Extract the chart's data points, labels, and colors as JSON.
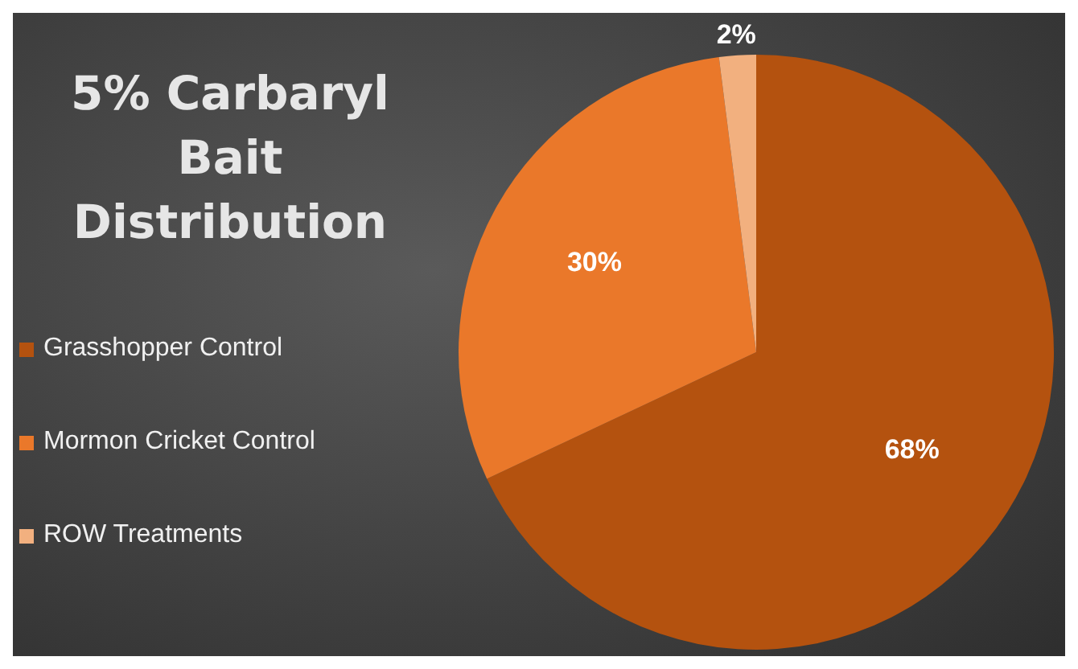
{
  "chart_data": {
    "type": "pie",
    "title": "5% Carbaryl Bait Distribution",
    "categories": [
      "Grasshopper Control",
      "Mormon Cricket Control",
      "ROW Treatments"
    ],
    "values": [
      68,
      30,
      2
    ],
    "colors": [
      "#b4520f",
      "#ea782a",
      "#f2b07f"
    ],
    "value_labels": [
      "68%",
      "30%",
      "2%"
    ],
    "legend": "left"
  }
}
